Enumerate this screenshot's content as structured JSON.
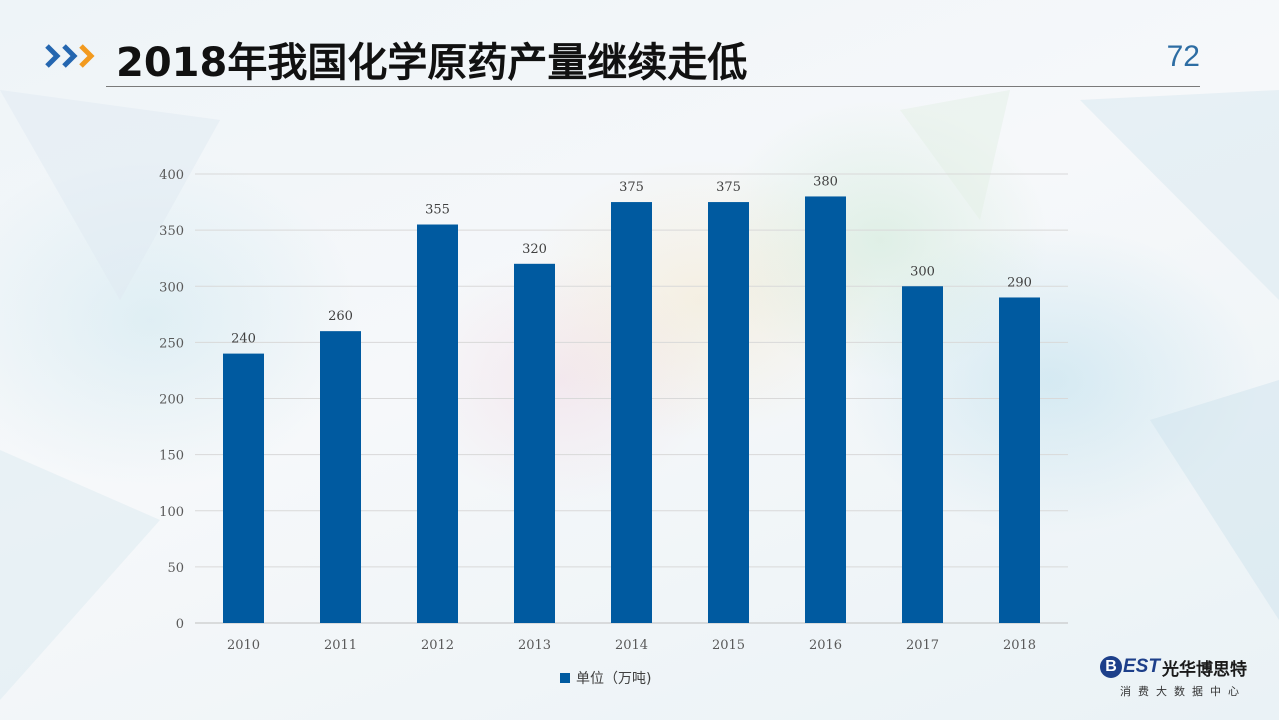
{
  "header": {
    "title": "2018年我国化学原药产量继续走低",
    "page_number": "72"
  },
  "colors": {
    "bar": "#005aa0",
    "arrow_blue": "#2466b0",
    "arrow_orange": "#f29a1f"
  },
  "chart_data": {
    "type": "bar",
    "categories": [
      "2010",
      "2011",
      "2012",
      "2013",
      "2014",
      "2015",
      "2016",
      "2017",
      "2018"
    ],
    "series": [
      {
        "name": "单位（万吨)",
        "values": [
          240,
          260,
          355,
          320,
          375,
          375,
          380,
          300,
          290
        ]
      }
    ],
    "title": "",
    "xlabel": "",
    "ylabel": "",
    "ylim": [
      0,
      400
    ],
    "yticks": [
      "0",
      "50",
      "100",
      "150",
      "200",
      "250",
      "300",
      "350",
      "400"
    ],
    "grid": true,
    "legend_position": "bottom"
  },
  "logo": {
    "mark": "B",
    "brand": "EST",
    "name_cn": "光华博思特",
    "subtitle": "消费大数据中心"
  }
}
